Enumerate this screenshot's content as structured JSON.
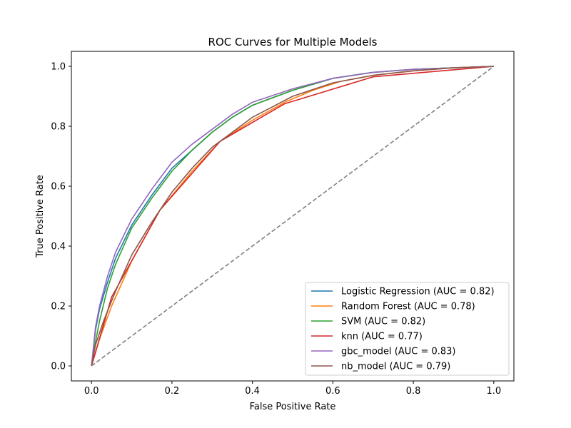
{
  "chart_data": {
    "type": "line",
    "title": "ROC Curves for Multiple Models",
    "xlabel": "False Positive Rate",
    "ylabel": "True Positive Rate",
    "xlim": [
      -0.05,
      1.05
    ],
    "ylim": [
      -0.05,
      1.05
    ],
    "xticks": [
      0.0,
      0.2,
      0.4,
      0.6,
      0.8,
      1.0
    ],
    "yticks": [
      0.0,
      0.2,
      0.4,
      0.6,
      0.8,
      1.0
    ],
    "xtick_labels": [
      "0.0",
      "0.2",
      "0.4",
      "0.6",
      "0.8",
      "1.0"
    ],
    "ytick_labels": [
      "0.0",
      "0.2",
      "0.4",
      "0.6",
      "0.8",
      "1.0"
    ],
    "grid": false,
    "legend_position": "lower-right",
    "series": [
      {
        "name": "Logistic Regression (AUC = 0.82)",
        "color": "#1f77b4",
        "x": [
          0,
          0.01,
          0.02,
          0.04,
          0.06,
          0.1,
          0.15,
          0.2,
          0.25,
          0.3,
          0.35,
          0.4,
          0.5,
          0.6,
          0.7,
          0.8,
          0.9,
          1.0
        ],
        "y": [
          0,
          0.12,
          0.19,
          0.28,
          0.36,
          0.47,
          0.57,
          0.66,
          0.72,
          0.78,
          0.83,
          0.87,
          0.92,
          0.96,
          0.98,
          0.99,
          0.995,
          1.0
        ]
      },
      {
        "name": "Random Forest (AUC = 0.78)",
        "color": "#ff7f0e",
        "x": [
          0,
          0.02,
          0.05,
          0.1,
          0.17,
          0.25,
          0.32,
          0.4,
          0.48,
          0.55,
          0.62,
          0.7,
          0.8,
          0.9,
          1.0
        ],
        "y": [
          0,
          0.09,
          0.2,
          0.35,
          0.52,
          0.65,
          0.75,
          0.82,
          0.88,
          0.92,
          0.95,
          0.97,
          0.985,
          0.995,
          1.0
        ]
      },
      {
        "name": "SVM (AUC = 0.82)",
        "color": "#2ca02c",
        "x": [
          0,
          0.01,
          0.02,
          0.04,
          0.06,
          0.1,
          0.15,
          0.2,
          0.25,
          0.3,
          0.35,
          0.4,
          0.5,
          0.6,
          0.7,
          0.8,
          0.9,
          1.0
        ],
        "y": [
          0,
          0.08,
          0.15,
          0.26,
          0.34,
          0.46,
          0.56,
          0.65,
          0.72,
          0.78,
          0.83,
          0.87,
          0.92,
          0.96,
          0.98,
          0.99,
          0.995,
          1.0
        ]
      },
      {
        "name": "knn (AUC = 0.77)",
        "color": "#d62728",
        "x": [
          0,
          0.05,
          0.17,
          0.32,
          0.48,
          0.7,
          1.0
        ],
        "y": [
          0,
          0.23,
          0.52,
          0.75,
          0.875,
          0.965,
          1.0
        ]
      },
      {
        "name": "gbc_model (AUC = 0.83)",
        "color": "#9467bd",
        "x": [
          0,
          0.01,
          0.02,
          0.04,
          0.06,
          0.1,
          0.15,
          0.2,
          0.25,
          0.3,
          0.35,
          0.4,
          0.5,
          0.6,
          0.7,
          0.8,
          0.9,
          1.0
        ],
        "y": [
          0,
          0.13,
          0.2,
          0.3,
          0.38,
          0.49,
          0.59,
          0.68,
          0.74,
          0.79,
          0.84,
          0.88,
          0.925,
          0.96,
          0.98,
          0.99,
          0.995,
          1.0
        ]
      },
      {
        "name": "nb_model (AUC = 0.79)",
        "color": "#8c564b",
        "x": [
          0,
          0.01,
          0.03,
          0.06,
          0.1,
          0.15,
          0.2,
          0.25,
          0.3,
          0.35,
          0.4,
          0.5,
          0.6,
          0.7,
          0.8,
          0.9,
          1.0
        ],
        "y": [
          0,
          0.07,
          0.15,
          0.25,
          0.37,
          0.48,
          0.58,
          0.66,
          0.73,
          0.78,
          0.83,
          0.9,
          0.945,
          0.97,
          0.985,
          0.995,
          1.0
        ]
      },
      {
        "name": "",
        "color": "#808080",
        "dashed": true,
        "x": [
          0,
          1
        ],
        "y": [
          0,
          1
        ]
      }
    ]
  }
}
